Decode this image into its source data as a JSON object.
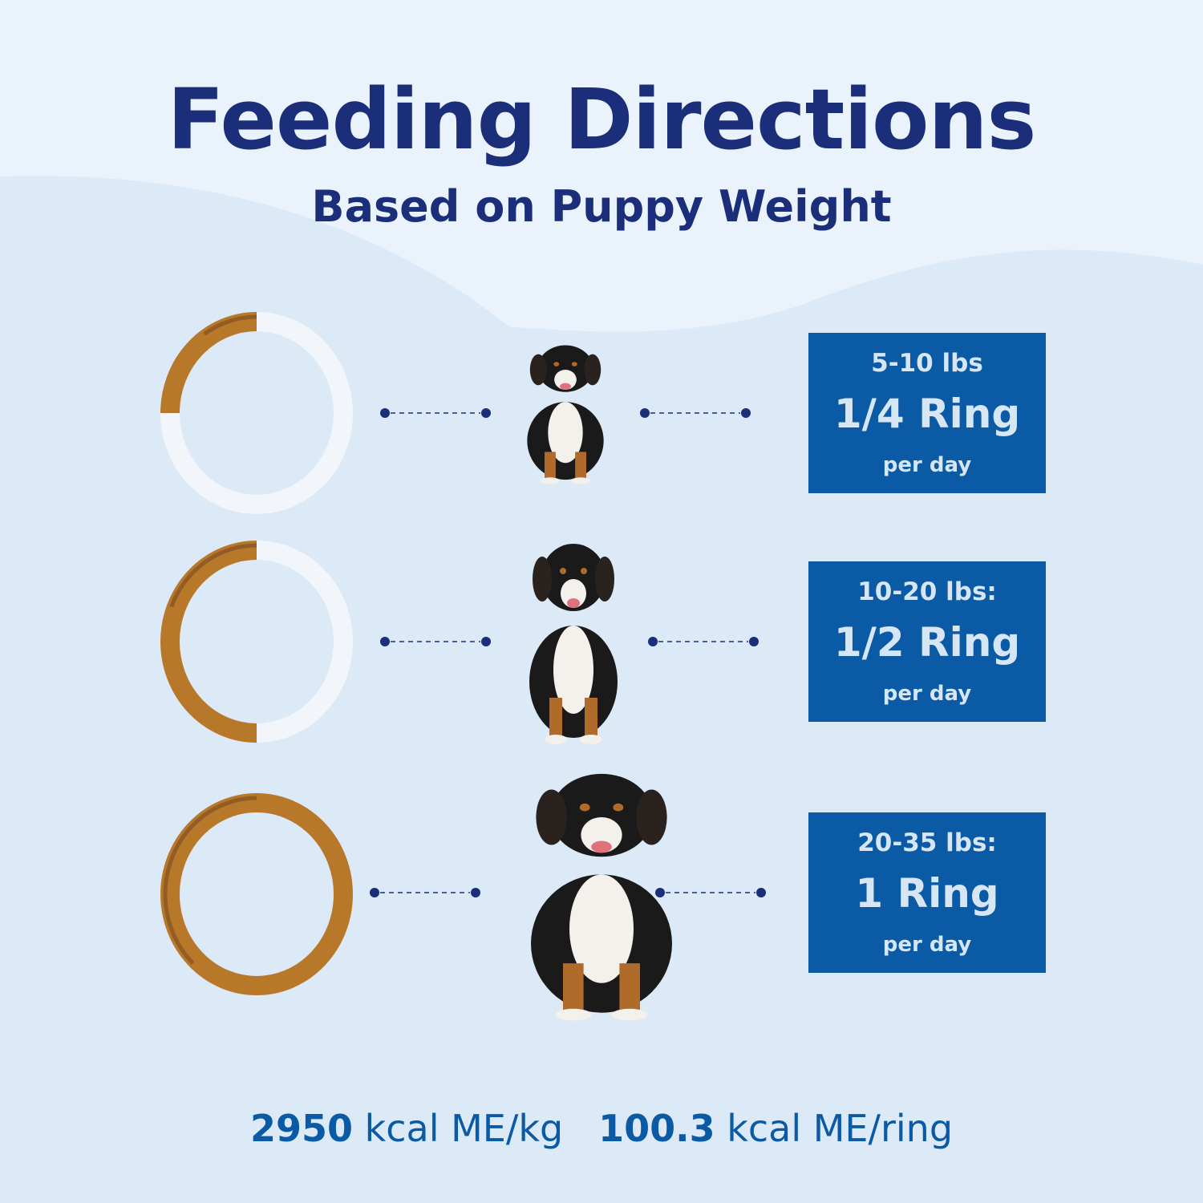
{
  "header": {
    "title": "Feeding Directions",
    "subtitle": "Based on Puppy Weight"
  },
  "colors": {
    "title": "#1a2e7a",
    "box": "#0b5aa5",
    "box_text": "#d6e6f5",
    "ring_chew": "#b8782a",
    "ring_empty": "#f2f6fb",
    "dots": "#1a2e7a"
  },
  "rows": [
    {
      "weight": "5-10 lbs",
      "amount": "1/4 Ring",
      "per": "per day",
      "ring_fraction": 0.25
    },
    {
      "weight": "10-20 lbs:",
      "amount": "1/2 Ring",
      "per": "per day",
      "ring_fraction": 0.5
    },
    {
      "weight": "20-35 lbs:",
      "amount": "1 Ring",
      "per": "per day",
      "ring_fraction": 1
    }
  ],
  "footer": {
    "kcal_kg_value": "2950",
    "kcal_kg_unit": "kcal ME/kg",
    "kcal_ring_value": "100.3",
    "kcal_ring_unit": "kcal ME/ring"
  }
}
